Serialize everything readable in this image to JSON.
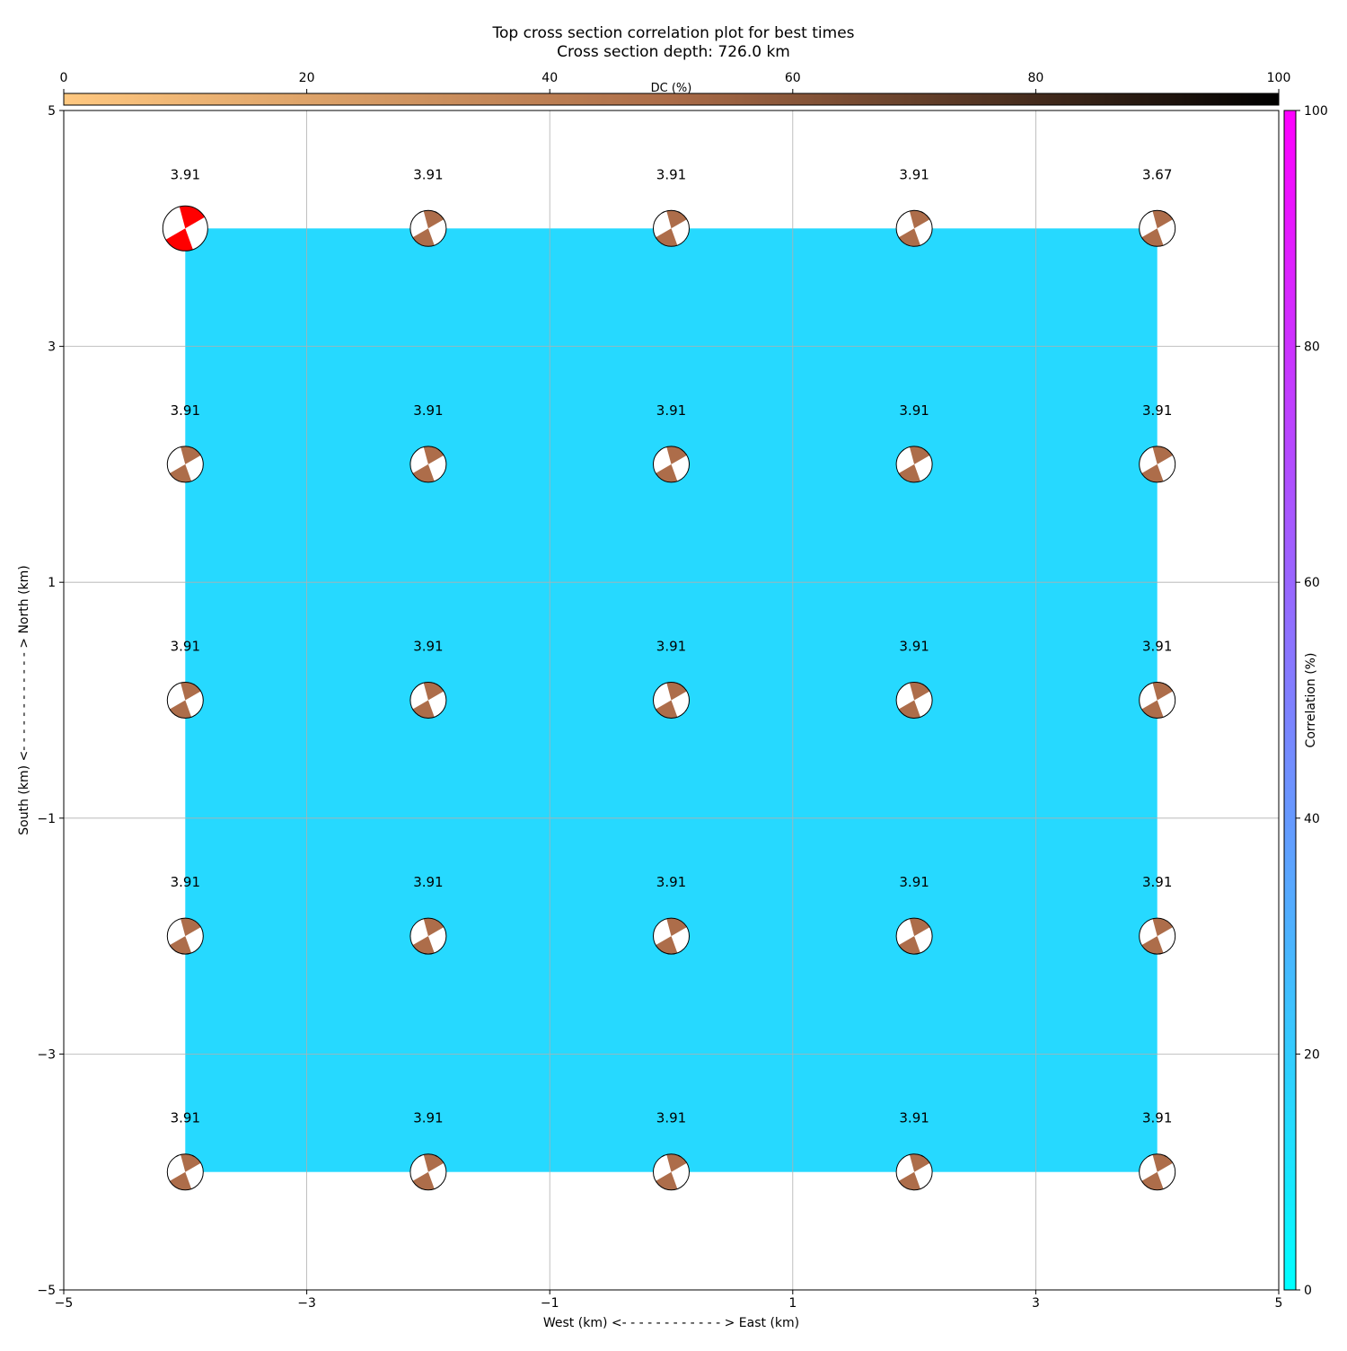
{
  "figure": {
    "title": "Top cross section correlation plot for best times",
    "subtitle": "Cross section depth: 726.0 km"
  },
  "chart_data": {
    "type": "heatmap",
    "xlabel": "West (km) <- - - - - - - - - - - - > East (km)",
    "ylabel": "South (km) <- - - - - - - - - - - - > North (km)",
    "xlim": [
      -5,
      5
    ],
    "ylim": [
      -5,
      5
    ],
    "xticks": [
      -5,
      -3,
      -1,
      1,
      3,
      5
    ],
    "yticks": [
      -5,
      -3,
      -1,
      1,
      3,
      5
    ],
    "xtick_labels": [
      "−5",
      "−3",
      "−1",
      "1",
      "3",
      "5"
    ],
    "ytick_labels": [
      "−5",
      "−3",
      "−1",
      "1",
      "3",
      "5"
    ],
    "grid": true,
    "grid_x": [
      -4,
      -2,
      0,
      2,
      4
    ],
    "grid_y": [
      4,
      2,
      0,
      -2,
      -4
    ],
    "correlation": [
      [
        20,
        20,
        20,
        20,
        20
      ],
      [
        20,
        20,
        20,
        20,
        20
      ],
      [
        20,
        20,
        20,
        20,
        20
      ],
      [
        20,
        20,
        20,
        20,
        20
      ],
      [
        20,
        20,
        20,
        20,
        20
      ]
    ],
    "heatmap_color": "#26d9ff",
    "labels": [
      [
        "3.91",
        "3.91",
        "3.91",
        "3.91",
        "3.67"
      ],
      [
        "3.91",
        "3.91",
        "3.91",
        "3.91",
        "3.91"
      ],
      [
        "3.91",
        "3.91",
        "3.91",
        "3.91",
        "3.91"
      ],
      [
        "3.91",
        "3.91",
        "3.91",
        "3.91",
        "3.91"
      ],
      [
        "3.91",
        "3.91",
        "3.91",
        "3.91",
        "3.91"
      ]
    ],
    "best_solution": {
      "row": 0,
      "col": 0,
      "color": "#ff0000"
    },
    "beachball_color": "#ad6d4a",
    "colorbar_dc": {
      "label": "DC (%)",
      "range": [
        0,
        100
      ],
      "ticks": [
        0,
        20,
        40,
        60,
        80,
        100
      ],
      "cmap": [
        "#ffc880",
        "#ab6c48",
        "#000000"
      ],
      "position": "top"
    },
    "colorbar_corr": {
      "label": "Correlation (%)",
      "range": [
        0,
        100
      ],
      "ticks": [
        0,
        20,
        40,
        60,
        80,
        100
      ],
      "cmap": [
        "#00ffff",
        "#ff00ff"
      ],
      "position": "right"
    }
  }
}
